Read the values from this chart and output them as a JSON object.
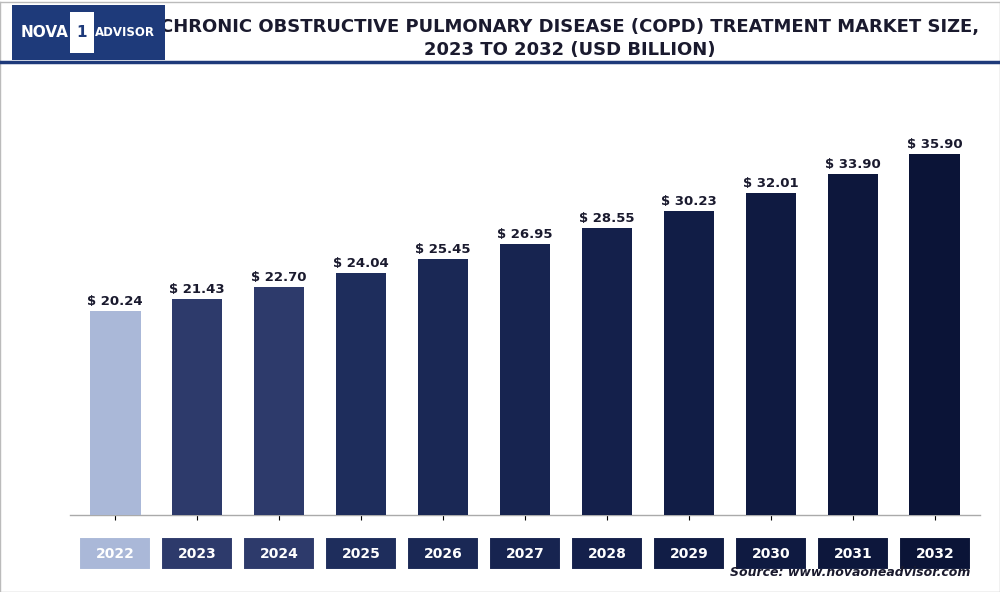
{
  "years": [
    "2022",
    "2023",
    "2024",
    "2025",
    "2026",
    "2027",
    "2028",
    "2029",
    "2030",
    "2031",
    "2032"
  ],
  "values": [
    20.24,
    21.43,
    22.7,
    24.04,
    25.45,
    26.95,
    28.55,
    30.23,
    32.01,
    33.9,
    35.9
  ],
  "labels": [
    "$ 20.24",
    "$ 21.43",
    "$ 22.70",
    "$ 24.04",
    "$ 25.45",
    "$ 26.95",
    "$ 28.55",
    "$ 30.23",
    "$ 32.01",
    "$ 33.90",
    "$ 35.90"
  ],
  "bar_colors": [
    "#aab8d8",
    "#2d3a6b",
    "#2d3a6b",
    "#1e2d5c",
    "#1a2855",
    "#172450",
    "#14204b",
    "#111d46",
    "#0f1a41",
    "#0d173c",
    "#0b1437"
  ],
  "title_line1": "CHRONIC OBSTRUCTIVE PULMONARY DISEASE (COPD) TREATMENT MARKET SIZE,",
  "title_line2": "2023 TO 2032 (USD BILLION)",
  "source_text": "Source: www.novaoneadvisor.com",
  "ylim": [
    0,
    40
  ],
  "grid_color": "#cccccc",
  "bg_color": "#ffffff",
  "plot_bg_color": "#ffffff",
  "title_color": "#1a1a2e",
  "label_fontsize": 9.5,
  "tick_fontsize": 10,
  "title_fontsize": 13
}
